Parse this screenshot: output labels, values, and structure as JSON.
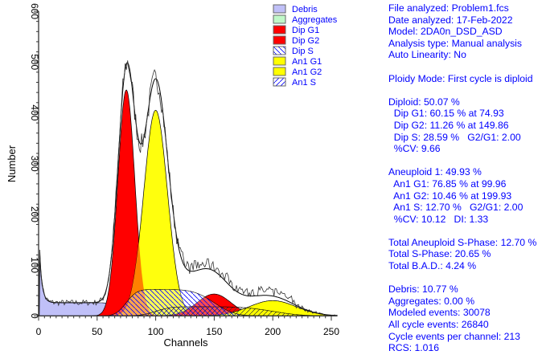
{
  "chart_data": {
    "type": "area",
    "xlabel": "Channels",
    "ylabel": "Number",
    "xlim": [
      0,
      256
    ],
    "ylim": [
      0,
      600
    ],
    "xticks": [
      0,
      50,
      100,
      150,
      200,
      250
    ],
    "yticks": [
      0,
      100,
      200,
      300,
      400,
      500,
      600
    ],
    "legend_position": "top-right",
    "legend": [
      {
        "label": "Debris",
        "color": "#c0c0f8",
        "pattern": "solid"
      },
      {
        "label": "Aggregates",
        "color": "#c0f8c8",
        "pattern": "solid"
      },
      {
        "label": "Dip G1",
        "color": "#ff0000",
        "pattern": "solid"
      },
      {
        "label": "Dip G2",
        "color": "#ff0000",
        "pattern": "solid"
      },
      {
        "label": "Dip S",
        "color": "#0000ff",
        "pattern": "hatch-back"
      },
      {
        "label": "An1 G1",
        "color": "#ffff00",
        "pattern": "solid"
      },
      {
        "label": "An1 G2",
        "color": "#ffff00",
        "pattern": "solid"
      },
      {
        "label": "An1 S",
        "color": "#0000ff",
        "pattern": "hatch-fwd"
      }
    ],
    "components": {
      "dip_g1": {
        "mean": 74.93,
        "peak": 445,
        "sd": 7.2
      },
      "dip_g2": {
        "mean": 149.86,
        "peak": 43,
        "sd": 14.5
      },
      "dip_s": {
        "from": 74.93,
        "to": 149.86,
        "height": 52
      },
      "an1_g1": {
        "mean": 99.96,
        "peak": 405,
        "sd": 10.1
      },
      "an1_g2": {
        "mean": 199.93,
        "peak": 30,
        "sd": 20
      },
      "an1_s": {
        "from": 99.96,
        "to": 199.93,
        "height": 18
      },
      "debris": {
        "start": 120,
        "plateau": 26,
        "end": 70
      }
    },
    "histogram_peaks": [
      {
        "channel": 78,
        "value": 540
      },
      {
        "channel": 100,
        "value": 485
      },
      {
        "channel": 88,
        "value": 355
      }
    ]
  },
  "stats": [
    "File analyzed: Problem1.fcs",
    "Date analyzed: 17-Feb-2022",
    "Model: 2DA0n_DSD_ASD",
    "Analysis type: Manual analysis",
    "Auto Linearity: No",
    "",
    "Ploidy Mode: First cycle is diploid",
    "",
    "Diploid: 50.07 %",
    "  Dip G1: 60.15 % at 74.93",
    "  Dip G2: 11.26 % at 149.86",
    "  Dip S: 28.59 %   G2/G1: 2.00",
    "  %CV: 9.66",
    "",
    "Aneuploid 1: 49.93 %",
    "  An1 G1: 76.85 % at 99.96",
    "  An1 G2: 10.46 % at 199.93",
    "  An1 S: 12.70 %   G2/G1: 2.00",
    "  %CV: 10.12   DI: 1.33",
    "",
    "Total Aneuploid S-Phase: 12.70 %",
    "Total S-Phase: 20.65 %",
    "Total B.A.D.: 4.24 %",
    "",
    "Debris: 10.77 %",
    "Aggregates: 0.00 %",
    "Modeled events: 30078",
    "All cycle events: 26840",
    "Cycle events per channel: 213",
    "RCS: 1.016"
  ]
}
